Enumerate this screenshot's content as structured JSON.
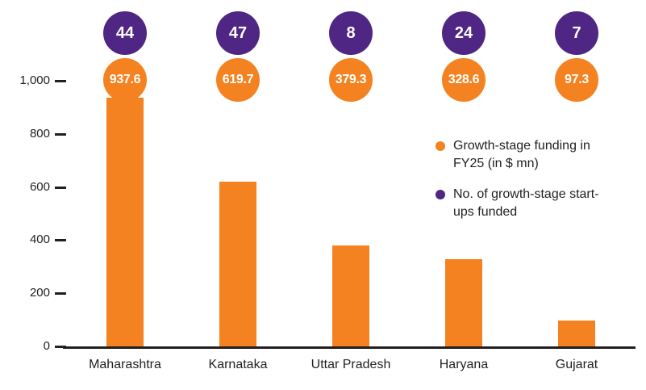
{
  "chart_data": {
    "type": "bar",
    "categories": [
      "Maharashtra",
      "Karnataka",
      "Uttar Pradesh",
      "Haryana",
      "Gujarat"
    ],
    "series": [
      {
        "name": "Growth-stage funding in FY25 (in $ mn)",
        "color": "#F58220",
        "values": [
          937.6,
          619.7,
          379.3,
          328.6,
          97.3
        ]
      },
      {
        "name": "No. of growth-stage start-ups funded",
        "color": "#4F2683",
        "values": [
          44,
          47,
          8,
          24,
          7
        ]
      }
    ],
    "value_labels": [
      "937.6",
      "619.7",
      "379.3",
      "328.6",
      "97.3"
    ],
    "count_labels": [
      "44",
      "47",
      "8",
      "24",
      "7"
    ],
    "ylim": [
      0,
      1000
    ],
    "yticks": [
      0,
      200,
      400,
      600,
      800,
      1000
    ],
    "ytick_labels": [
      "0",
      "200",
      "400",
      "600",
      "800",
      "1,000"
    ],
    "grid": false,
    "legend_position": "right-middle"
  },
  "legend": {
    "items": [
      {
        "label": "Growth-stage funding in FY25 (in $ mn)",
        "color": "#F58220"
      },
      {
        "label": "No. of growth-stage start-ups funded",
        "color": "#4F2683"
      }
    ]
  },
  "colors": {
    "orange": "#F58220",
    "purple": "#4F2683",
    "axis": "#231F20",
    "background": "#FFFFFF"
  }
}
